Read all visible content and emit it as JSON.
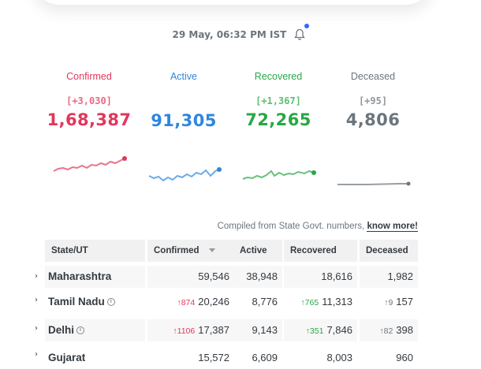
{
  "header": {
    "timestamp": "29 May, 06:32 PM IST"
  },
  "stats": [
    {
      "label": "Confirmed",
      "delta": "[+3,030]",
      "total": "1,68,387",
      "color": "#e1375c"
    },
    {
      "label": "Active",
      "delta": "",
      "total": "91,305",
      "color": "#2e86de"
    },
    {
      "label": "Recovered",
      "delta": "[+1,367]",
      "total": "72,265",
      "color": "#28a745"
    },
    {
      "label": "Deceased",
      "delta": "[+95]",
      "total": "4,806",
      "color": "#6c757d"
    }
  ],
  "compiled": {
    "text": "Compiled from State Govt. numbers,",
    "link": "know more!"
  },
  "table": {
    "headers": [
      "State/UT",
      "Confirmed",
      "Active",
      "Recovered",
      "Deceased"
    ],
    "rows": [
      {
        "state": "Maharashtra",
        "info": false,
        "confirmed": "59,546",
        "confirmed_delta": "",
        "active": "38,948",
        "recovered": "18,616",
        "recovered_delta": "",
        "deceased": "1,982",
        "deceased_delta": ""
      },
      {
        "state": "Tamil Nadu",
        "info": true,
        "confirmed": "20,246",
        "confirmed_delta": "↑874",
        "active": "8,776",
        "recovered": "11,313",
        "recovered_delta": "↑765",
        "deceased": "157",
        "deceased_delta": "↑9"
      },
      {
        "state": "Delhi",
        "info": true,
        "confirmed": "17,387",
        "confirmed_delta": "↑1106",
        "active": "9,143",
        "recovered": "7,846",
        "recovered_delta": "↑351",
        "deceased": "398",
        "deceased_delta": "↑82"
      },
      {
        "state": "Gujarat",
        "info": false,
        "confirmed": "15,572",
        "confirmed_delta": "",
        "active": "6,609",
        "recovered": "8,003",
        "recovered_delta": "",
        "deceased": "960",
        "deceased_delta": ""
      }
    ]
  }
}
